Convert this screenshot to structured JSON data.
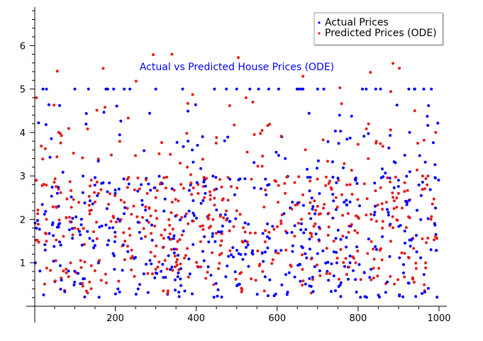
{
  "chart_data": {
    "type": "scatter",
    "title": "Actual vs Predicted House Prices (ODE)",
    "xlabel": "",
    "ylabel": "",
    "xlim": [
      1,
      1000
    ],
    "ylim": [
      0,
      7
    ],
    "x_ticks": [
      200,
      400,
      600,
      800,
      1000
    ],
    "y_ticks": [
      1,
      2,
      3,
      4,
      5,
      6
    ],
    "grid": false,
    "legend_position": "top-right",
    "series": [
      {
        "name": "Actual Prices",
        "color": "#0000ff",
        "sample_x": [
          5,
          30,
          60,
          100,
          150,
          200,
          260,
          300,
          340,
          380,
          420,
          460,
          500,
          540,
          580,
          620,
          660,
          700,
          740,
          780,
          820,
          860,
          900,
          940,
          980
        ],
        "sample_y": [
          1.8,
          5.0,
          2.3,
          5.0,
          1.4,
          2.6,
          1.7,
          5.0,
          0.9,
          3.8,
          1.6,
          2.1,
          5.0,
          1.2,
          2.8,
          3.4,
          1.9,
          5.0,
          0.7,
          2.4,
          5.0,
          1.6,
          2.9,
          5.0,
          1.3
        ]
      },
      {
        "name": "Predicted Prices (ODE)",
        "color": "#e41a1c",
        "sample_x": [
          5,
          30,
          60,
          100,
          150,
          200,
          260,
          300,
          340,
          380,
          420,
          460,
          500,
          540,
          580,
          620,
          660,
          700,
          740,
          780,
          820,
          860,
          900,
          940,
          980
        ],
        "sample_y": [
          2.9,
          2.0,
          4.0,
          1.8,
          2.4,
          1.6,
          2.7,
          2.2,
          5.8,
          1.9,
          2.5,
          1.4,
          2.2,
          4.7,
          1.7,
          2.6,
          2.0,
          2.3,
          1.5,
          2.8,
          2.1,
          1.8,
          2.6,
          4.5,
          2.0
        ]
      }
    ],
    "n_points_per_series": 1000
  }
}
